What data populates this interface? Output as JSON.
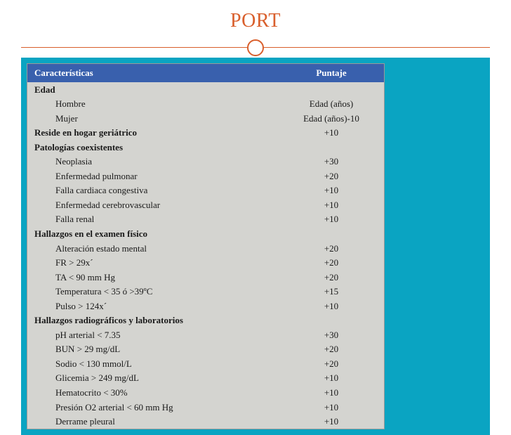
{
  "colors": {
    "title": "#d95f2c",
    "accent_bg": "#0aa4c2",
    "table_bg": "#d4d4d0",
    "header_bg": "#3960ad",
    "header_text": "#ffffff",
    "body_text": "#1a1a1a"
  },
  "title": "PORT",
  "table": {
    "headers": {
      "characteristic": "Características",
      "score": "Puntaje"
    },
    "rows": [
      {
        "label": "Edad",
        "score": "",
        "section": true,
        "indent": false
      },
      {
        "label": "Hombre",
        "score": "Edad (años)",
        "section": false,
        "indent": true
      },
      {
        "label": "Mujer",
        "score": "Edad (años)-10",
        "section": false,
        "indent": true
      },
      {
        "label": "Reside en hogar geriátrico",
        "score": "+10",
        "section": true,
        "indent": false
      },
      {
        "label": "Patologías coexistentes",
        "score": "",
        "section": true,
        "indent": false
      },
      {
        "label": "Neoplasia",
        "score": "+30",
        "section": false,
        "indent": true
      },
      {
        "label": "Enfermedad pulmonar",
        "score": "+20",
        "section": false,
        "indent": true
      },
      {
        "label": "Falla cardiaca congestiva",
        "score": "+10",
        "section": false,
        "indent": true
      },
      {
        "label": "Enfermedad cerebrovascular",
        "score": "+10",
        "section": false,
        "indent": true
      },
      {
        "label": "Falla renal",
        "score": "+10",
        "section": false,
        "indent": true
      },
      {
        "label": "Hallazgos en el examen físico",
        "score": "",
        "section": true,
        "indent": false
      },
      {
        "label": "Alteración estado mental",
        "score": "+20",
        "section": false,
        "indent": true
      },
      {
        "label": "FR > 29x´",
        "score": "+20",
        "section": false,
        "indent": true
      },
      {
        "label": "TA < 90 mm Hg",
        "score": "+20",
        "section": false,
        "indent": true
      },
      {
        "label": "Temperatura < 35 ó >39ºC",
        "score": "+15",
        "section": false,
        "indent": true
      },
      {
        "label": "Pulso > 124x´",
        "score": "+10",
        "section": false,
        "indent": true
      },
      {
        "label": "Hallazgos radiográficos y laboratorios",
        "score": "",
        "section": true,
        "indent": false
      },
      {
        "label": "pH arterial < 7.35",
        "score": "+30",
        "section": false,
        "indent": true
      },
      {
        "label": "BUN > 29 mg/dL",
        "score": "+20",
        "section": false,
        "indent": true
      },
      {
        "label": "Sodio < 130 mmol/L",
        "score": "+20",
        "section": false,
        "indent": true
      },
      {
        "label": "Glicemia > 249 mg/dL",
        "score": "+10",
        "section": false,
        "indent": true
      },
      {
        "label": "Hematocrito < 30%",
        "score": "+10",
        "section": false,
        "indent": true
      },
      {
        "label": "Presión O2 arterial < 60 mm Hg",
        "score": "+10",
        "section": false,
        "indent": true
      },
      {
        "label": "Derrame pleural",
        "score": "+10",
        "section": false,
        "indent": true
      }
    ]
  }
}
